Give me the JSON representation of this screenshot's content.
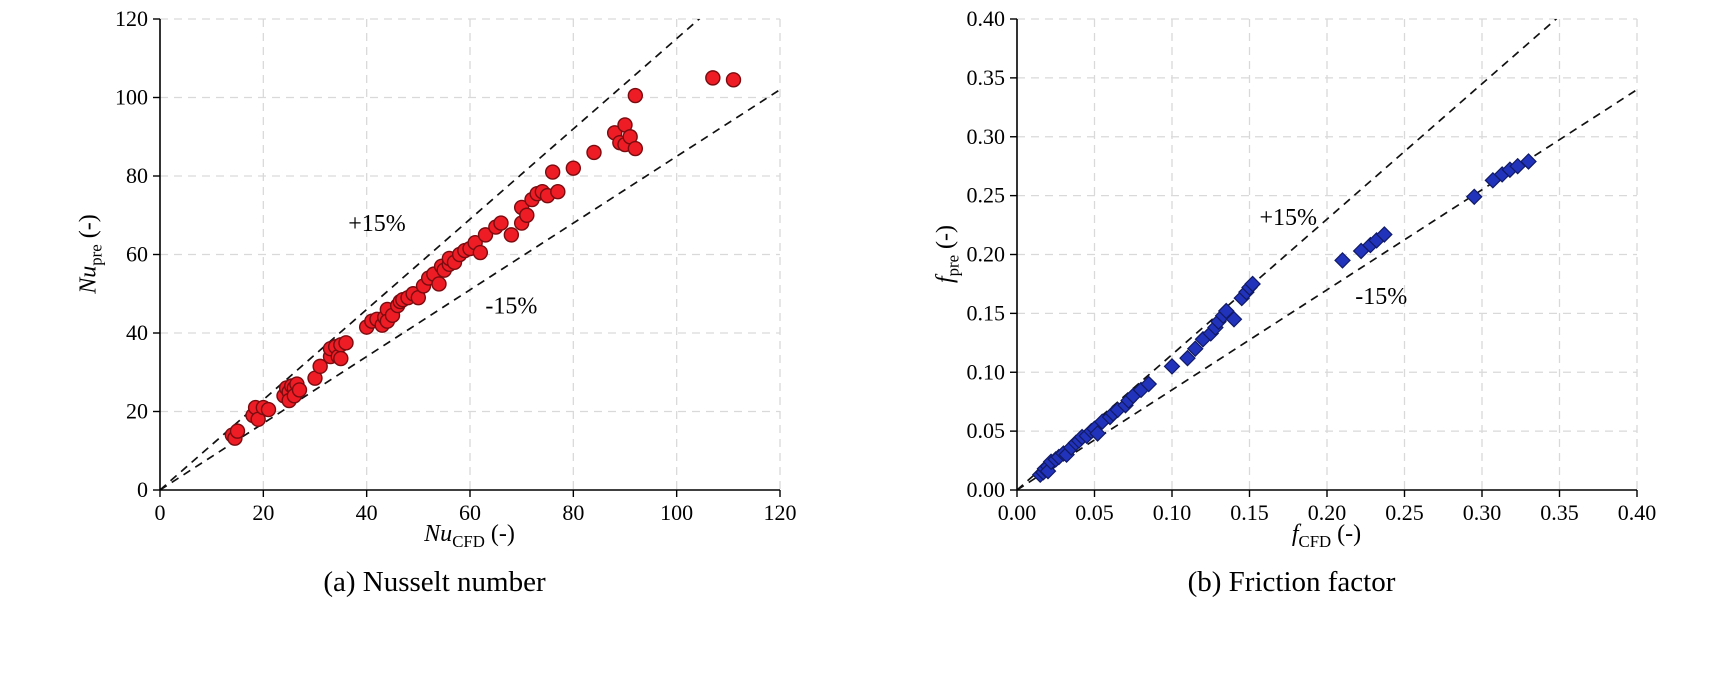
{
  "figure": {
    "background": "#ffffff",
    "panels": [
      {
        "caption": "(a) Nusselt number",
        "ylabel": {
          "var": "Nu",
          "sub": "pre",
          "unit": " (-)"
        },
        "xlabel": {
          "var": "Nu",
          "sub": "CFD",
          "unit": " (-)"
        }
      },
      {
        "caption": "(b) Friction factor",
        "ylabel": {
          "var": "f",
          "sub": "pre",
          "unit": " (-)"
        },
        "xlabel": {
          "var": "f",
          "sub": "CFD",
          "unit": " (-)"
        }
      }
    ]
  },
  "chart_data": [
    {
      "type": "scatter",
      "title": "(a) Nusselt number",
      "xlabel": "Nu_CFD (-)",
      "ylabel": "Nu_pre (-)",
      "xlim": [
        0,
        120
      ],
      "ylim": [
        0,
        120
      ],
      "xticks": [
        0,
        20,
        40,
        60,
        80,
        100,
        120
      ],
      "yticks": [
        0,
        20,
        40,
        60,
        80,
        100,
        120
      ],
      "tick_decimals": 0,
      "grid": true,
      "grid_color": "#d9d9d9",
      "marker": "circle",
      "marker_color": "#ee1c25",
      "marker_edge": "#7a0c10",
      "reference_lines": [
        {
          "slope": 1.15,
          "label": "+15%"
        },
        {
          "slope": 0.85,
          "label": "-15%"
        }
      ],
      "annotations": [
        {
          "text": "+15%",
          "x": 42,
          "y": 66
        },
        {
          "text": "-15%",
          "x": 68,
          "y": 45
        }
      ],
      "points": [
        [
          14,
          14
        ],
        [
          14.5,
          13.2
        ],
        [
          15,
          15
        ],
        [
          18,
          19
        ],
        [
          18.5,
          21
        ],
        [
          19,
          18
        ],
        [
          20,
          21
        ],
        [
          21,
          20.5
        ],
        [
          24,
          24
        ],
        [
          24.5,
          26
        ],
        [
          25,
          25
        ],
        [
          25,
          22.8
        ],
        [
          25.5,
          26.5
        ],
        [
          26,
          26
        ],
        [
          26,
          24
        ],
        [
          26.5,
          27
        ],
        [
          27,
          25.5
        ],
        [
          30,
          28.5
        ],
        [
          31,
          31.5
        ],
        [
          33,
          34
        ],
        [
          33,
          36
        ],
        [
          34,
          36.5
        ],
        [
          34.5,
          34
        ],
        [
          35,
          37
        ],
        [
          35,
          33.5
        ],
        [
          36,
          37.5
        ],
        [
          40,
          41.5
        ],
        [
          41,
          43
        ],
        [
          42,
          43.5
        ],
        [
          43,
          42
        ],
        [
          43.5,
          44
        ],
        [
          44,
          46
        ],
        [
          44,
          43
        ],
        [
          45,
          44.5
        ],
        [
          46,
          47
        ],
        [
          46.5,
          48
        ],
        [
          47,
          48.5
        ],
        [
          48,
          49
        ],
        [
          49,
          50
        ],
        [
          50,
          49
        ],
        [
          51,
          52
        ],
        [
          52,
          54
        ],
        [
          53,
          55
        ],
        [
          54,
          52.5
        ],
        [
          54.5,
          57
        ],
        [
          55,
          56
        ],
        [
          56,
          57.5
        ],
        [
          56,
          59
        ],
        [
          57,
          58
        ],
        [
          58,
          60
        ],
        [
          59,
          61
        ],
        [
          60,
          61.5
        ],
        [
          61,
          63
        ],
        [
          62,
          60.5
        ],
        [
          63,
          65
        ],
        [
          65,
          67
        ],
        [
          66,
          68
        ],
        [
          68,
          65
        ],
        [
          70,
          72
        ],
        [
          70,
          68
        ],
        [
          71,
          70
        ],
        [
          72,
          74
        ],
        [
          73,
          75.5
        ],
        [
          74,
          76
        ],
        [
          75,
          75
        ],
        [
          76,
          81
        ],
        [
          77,
          76
        ],
        [
          80,
          82
        ],
        [
          84,
          86
        ],
        [
          88,
          91
        ],
        [
          89,
          88.5
        ],
        [
          90,
          93
        ],
        [
          90,
          88
        ],
        [
          91,
          90
        ],
        [
          92,
          87
        ],
        [
          92,
          100.5
        ],
        [
          107,
          105
        ],
        [
          111,
          104.5
        ]
      ]
    },
    {
      "type": "scatter",
      "title": "(b) Friction factor",
      "xlabel": "f_CFD (-)",
      "ylabel": "f_pre (-)",
      "xlim": [
        0,
        0.4
      ],
      "ylim": [
        0,
        0.4
      ],
      "xticks": [
        0,
        0.05,
        0.1,
        0.15,
        0.2,
        0.25,
        0.3,
        0.35,
        0.4
      ],
      "yticks": [
        0,
        0.05,
        0.1,
        0.15,
        0.2,
        0.25,
        0.3,
        0.35,
        0.4
      ],
      "tick_decimals": 2,
      "grid": true,
      "grid_color": "#d9d9d9",
      "marker": "diamond",
      "marker_color": "#2233bb",
      "marker_edge": "#101a66",
      "reference_lines": [
        {
          "slope": 1.15,
          "label": "+15%"
        },
        {
          "slope": 0.85,
          "label": "-15%"
        }
      ],
      "annotations": [
        {
          "text": "+15%",
          "x": 0.175,
          "y": 0.225
        },
        {
          "text": "-15%",
          "x": 0.235,
          "y": 0.158
        }
      ],
      "points": [
        [
          0.015,
          0.013
        ],
        [
          0.017,
          0.015
        ],
        [
          0.018,
          0.018
        ],
        [
          0.02,
          0.02
        ],
        [
          0.02,
          0.016
        ],
        [
          0.022,
          0.024
        ],
        [
          0.025,
          0.026
        ],
        [
          0.027,
          0.028
        ],
        [
          0.03,
          0.031
        ],
        [
          0.032,
          0.03
        ],
        [
          0.035,
          0.036
        ],
        [
          0.038,
          0.04
        ],
        [
          0.04,
          0.042
        ],
        [
          0.042,
          0.045
        ],
        [
          0.045,
          0.046
        ],
        [
          0.048,
          0.05
        ],
        [
          0.05,
          0.052
        ],
        [
          0.052,
          0.048
        ],
        [
          0.055,
          0.058
        ],
        [
          0.06,
          0.062
        ],
        [
          0.062,
          0.065
        ],
        [
          0.065,
          0.068
        ],
        [
          0.07,
          0.072
        ],
        [
          0.072,
          0.076
        ],
        [
          0.075,
          0.08
        ],
        [
          0.08,
          0.085
        ],
        [
          0.085,
          0.09
        ],
        [
          0.1,
          0.105
        ],
        [
          0.11,
          0.112
        ],
        [
          0.115,
          0.12
        ],
        [
          0.12,
          0.128
        ],
        [
          0.125,
          0.133
        ],
        [
          0.128,
          0.138
        ],
        [
          0.13,
          0.143
        ],
        [
          0.133,
          0.148
        ],
        [
          0.135,
          0.152
        ],
        [
          0.14,
          0.145
        ],
        [
          0.145,
          0.163
        ],
        [
          0.148,
          0.168
        ],
        [
          0.15,
          0.172
        ],
        [
          0.152,
          0.175
        ],
        [
          0.21,
          0.195
        ],
        [
          0.222,
          0.203
        ],
        [
          0.228,
          0.208
        ],
        [
          0.232,
          0.212
        ],
        [
          0.237,
          0.217
        ],
        [
          0.295,
          0.249
        ],
        [
          0.307,
          0.263
        ],
        [
          0.313,
          0.268
        ],
        [
          0.318,
          0.272
        ],
        [
          0.323,
          0.275
        ],
        [
          0.33,
          0.279
        ]
      ]
    }
  ]
}
